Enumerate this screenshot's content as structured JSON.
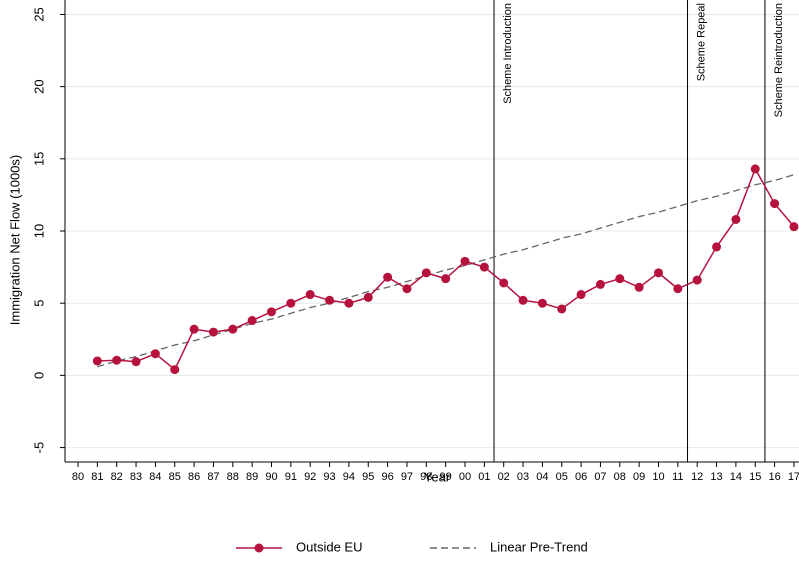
{
  "chart_data": {
    "type": "line",
    "x_label": "Year",
    "y_label": "Immigration Net Flow (1000s)",
    "categories": [
      "80",
      "81",
      "82",
      "83",
      "84",
      "85",
      "86",
      "87",
      "88",
      "89",
      "90",
      "91",
      "92",
      "93",
      "94",
      "95",
      "96",
      "97",
      "98",
      "99",
      "00",
      "01",
      "02",
      "03",
      "04",
      "05",
      "06",
      "07",
      "08",
      "09",
      "10",
      "11",
      "12",
      "13",
      "14",
      "15",
      "16",
      "17"
    ],
    "series": [
      {
        "name": "Outside EU",
        "color": "#b5123e",
        "style": "solid",
        "markers": true,
        "values": [
          null,
          1.0,
          1.05,
          0.95,
          1.5,
          0.4,
          3.2,
          3.0,
          3.2,
          3.8,
          4.4,
          5.0,
          5.6,
          5.2,
          5.0,
          5.4,
          6.8,
          6.0,
          7.1,
          6.7,
          7.9,
          7.5,
          6.4,
          5.2,
          5.0,
          4.6,
          5.6,
          6.3,
          6.7,
          6.1,
          7.1,
          6.0,
          6.6,
          8.9,
          10.8,
          14.3,
          11.9,
          10.3
        ]
      },
      {
        "name": "Linear Pre-Trend",
        "color": "#666666",
        "style": "dashed",
        "markers": false,
        "values": [
          null,
          0.6,
          1.0,
          1.3,
          1.7,
          2.1,
          2.4,
          2.8,
          3.2,
          3.6,
          3.9,
          4.3,
          4.7,
          5.0,
          5.4,
          5.8,
          6.1,
          6.5,
          6.9,
          7.3,
          7.6,
          8.0,
          8.4,
          8.7,
          9.1,
          9.5,
          9.8,
          10.2,
          10.6,
          11.0,
          11.3,
          11.7,
          12.1,
          12.4,
          12.8,
          13.2,
          13.5,
          13.9
        ]
      }
    ],
    "annotations": [
      {
        "text": "Scheme Introduction",
        "x": 21.5
      },
      {
        "text": "Scheme Repeal",
        "x": 31.5
      },
      {
        "text": "Scheme Reintroduction",
        "x": 35.5
      }
    ],
    "ylim": [
      -6,
      26
    ],
    "yticks": [
      -5,
      0,
      5,
      10,
      15,
      20,
      25
    ],
    "grid": true,
    "legend": "bottom"
  }
}
